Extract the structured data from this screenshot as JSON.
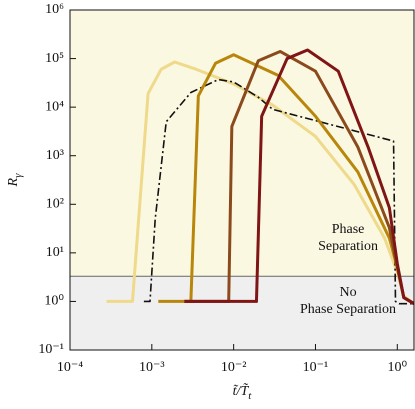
{
  "chart_data": {
    "type": "line",
    "xlabel": {
      "main": "t̃/T̃",
      "sub": "t"
    },
    "ylabel": {
      "main": "R",
      "sub": "γ"
    },
    "xlog": true,
    "ylog": true,
    "xlim": [
      0.0001,
      1.6
    ],
    "ylim": [
      0.1,
      1000000
    ],
    "xticks": [
      {
        "value": 0.0001,
        "label": "10⁻⁴"
      },
      {
        "value": 0.001,
        "label": "10⁻³"
      },
      {
        "value": 0.01,
        "label": "10⁻²"
      },
      {
        "value": 0.1,
        "label": "10⁻¹"
      },
      {
        "value": 1,
        "label": "10⁰"
      }
    ],
    "yticks": [
      {
        "value": 0.1,
        "label": "10⁻¹"
      },
      {
        "value": 1,
        "label": "10⁰"
      },
      {
        "value": 10,
        "label": "10¹"
      },
      {
        "value": 100,
        "label": "10²"
      },
      {
        "value": 1000,
        "label": "10³"
      },
      {
        "value": 10000,
        "label": "10⁴"
      },
      {
        "value": 100000,
        "label": "10⁵"
      },
      {
        "value": 1000000,
        "label": "10⁶"
      }
    ],
    "threshold": 3.3,
    "region_colors": {
      "above": "#fbf8e2",
      "below": "#efefef"
    },
    "annotations": [
      {
        "lines": [
          "Phase",
          "Separation"
        ],
        "x": 0.25,
        "y": 20
      },
      {
        "lines": [
          "No",
          "Phase Separation"
        ],
        "x": 0.25,
        "y": 1
      }
    ],
    "series": [
      {
        "color": "#efd98a",
        "dash": "solid",
        "x": [
          0.00028,
          0.00058,
          0.0009,
          0.0013,
          0.0019,
          0.0035,
          0.01,
          0.03,
          0.1,
          0.3,
          0.7,
          1.0,
          1.2,
          1.6
        ],
        "values": [
          1,
          1,
          19000,
          60000,
          85000,
          60000,
          30000,
          11000,
          2500,
          250,
          20,
          4,
          1.3,
          0.9
        ]
      },
      {
        "color": "#111111",
        "dash": "dashdot",
        "x": [
          0.0008,
          0.00095,
          0.0011,
          0.0015,
          0.003,
          0.0065,
          0.01,
          0.02,
          0.03,
          0.9,
          0.95,
          1.05,
          1.6
        ],
        "values": [
          1,
          1,
          50,
          5000,
          20000,
          37000,
          33000,
          16000,
          9000,
          2000,
          1,
          0.9,
          0.9
        ]
      },
      {
        "color": "#b8860b",
        "dash": "solid",
        "x": [
          0.0012,
          0.003,
          0.0037,
          0.006,
          0.01,
          0.035,
          0.1,
          0.33,
          0.8,
          1.0,
          1.2,
          1.6
        ],
        "values": [
          1,
          1,
          17000,
          80000,
          120000,
          45000,
          6500,
          460,
          20,
          5,
          1.2,
          0.9
        ]
      },
      {
        "color": "#8b4a1c",
        "dash": "solid",
        "x": [
          0.0025,
          0.0087,
          0.0095,
          0.02,
          0.037,
          0.1,
          0.33,
          0.8,
          1.0,
          1.2,
          1.6
        ],
        "values": [
          1,
          1,
          4000,
          90000,
          140000,
          55000,
          1500,
          33,
          5,
          1.2,
          0.9
        ]
      },
      {
        "color": "#7f1515",
        "dash": "solid",
        "x": [
          0.0025,
          0.019,
          0.022,
          0.045,
          0.08,
          0.19,
          0.44,
          0.8,
          1.0,
          1.2,
          1.6
        ],
        "values": [
          1,
          1,
          6500,
          100000,
          150000,
          55000,
          1500,
          85,
          6,
          1.2,
          0.9
        ]
      }
    ]
  }
}
